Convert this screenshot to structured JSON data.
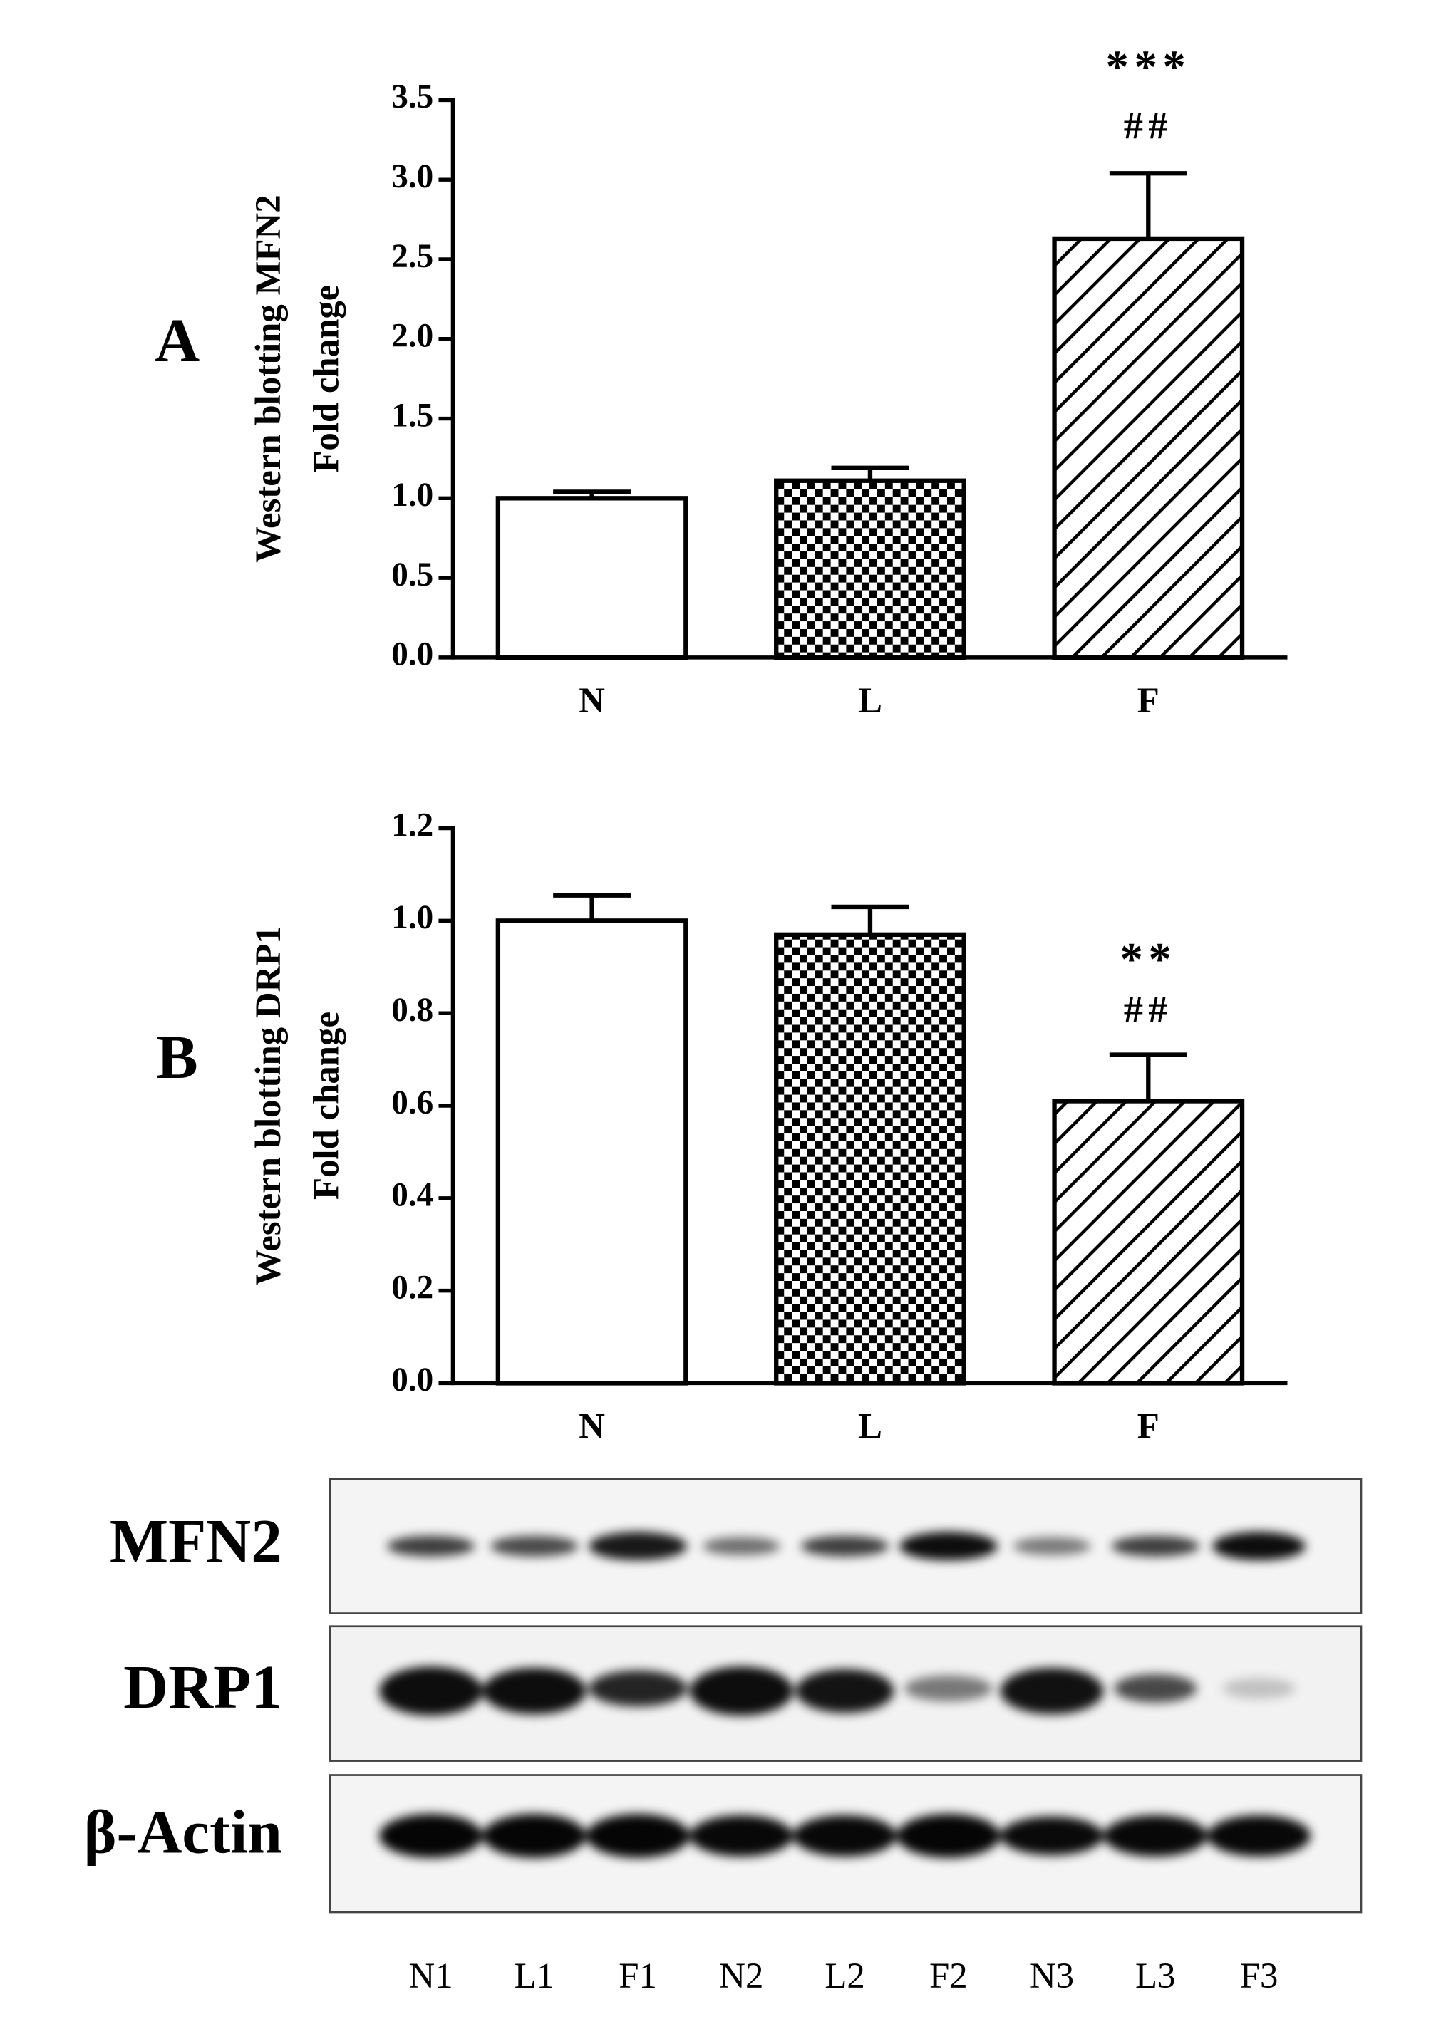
{
  "chart_data": [
    {
      "type": "bar",
      "panel": "A",
      "ylabel": [
        "Western blotting MFN2",
        "Fold change"
      ],
      "categories": [
        "N",
        "L",
        "F"
      ],
      "values": [
        1.0,
        1.11,
        2.63
      ],
      "errors": [
        0.04,
        0.08,
        0.41
      ],
      "patterns": [
        "none",
        "checker",
        "hatch"
      ],
      "color": "#000000",
      "ylim": [
        0,
        3.5
      ],
      "yticks": [
        {
          "value": 0,
          "label": "0.0"
        },
        0.5,
        {
          "value": 1,
          "label": "1.0"
        },
        1.5,
        {
          "value": 2,
          "label": "2.0"
        },
        2.5,
        {
          "value": 3,
          "label": "3.0"
        },
        3.5
      ],
      "annotations": [
        "***",
        "##"
      ]
    },
    {
      "type": "bar",
      "panel": "B",
      "ylabel": [
        "Western blotting DRP1",
        "Fold change"
      ],
      "categories": [
        "N",
        "L",
        "F"
      ],
      "values": [
        1.0,
        0.97,
        0.61
      ],
      "errors": [
        0.055,
        0.06,
        0.1
      ],
      "patterns": [
        "none",
        "checker",
        "hatch"
      ],
      "color": "#000000",
      "ylim": [
        0,
        1.2
      ],
      "yticks": [
        {
          "value": 0,
          "label": "0.0"
        },
        0.2,
        0.4,
        0.6,
        0.8,
        {
          "value": 1,
          "label": "1.0"
        },
        1.2
      ],
      "annotations": [
        "**",
        "##"
      ]
    }
  ],
  "blot": {
    "rows": [
      "MFN2",
      "DRP1",
      "β-Actin"
    ],
    "lanes": [
      "N1",
      "L1",
      "F1",
      "N2",
      "L2",
      "F2",
      "N3",
      "L3",
      "F3"
    ]
  }
}
